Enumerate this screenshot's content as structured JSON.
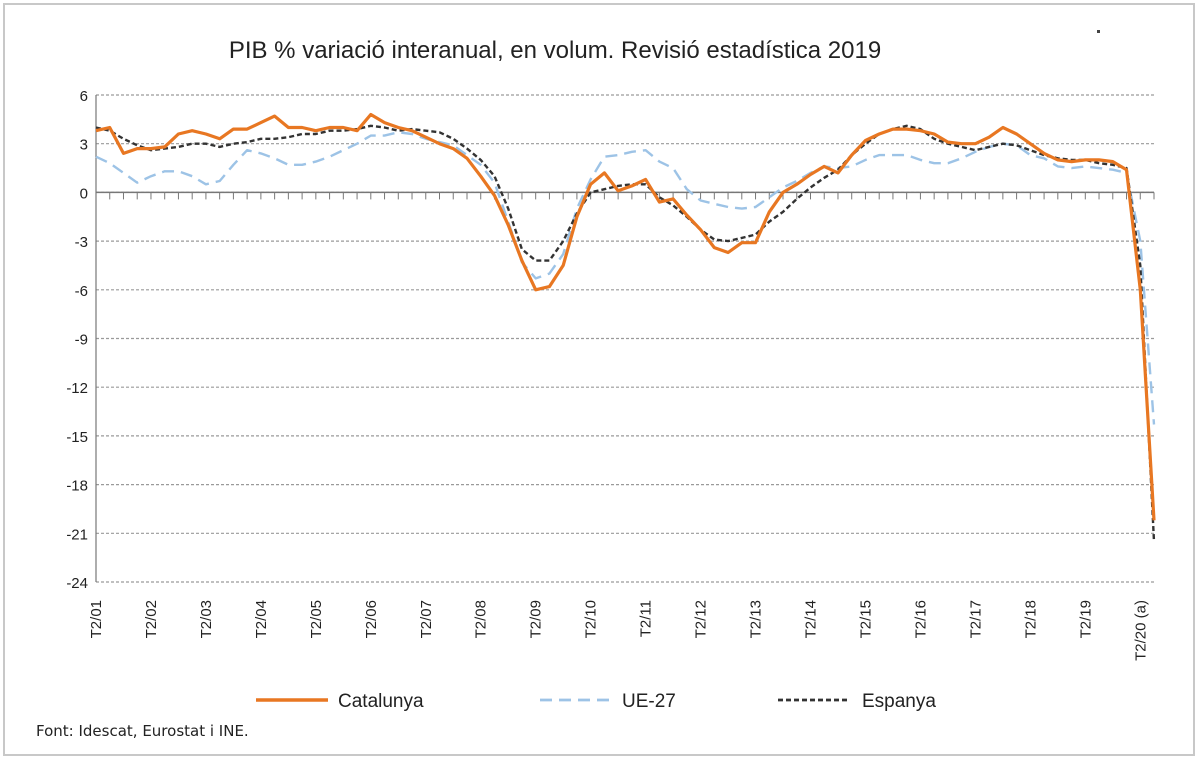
{
  "chart_data": {
    "type": "line",
    "title": "PIB % variació interanual, en volum. Revisió estadística 2019",
    "xlabel": "",
    "ylabel": "",
    "ylim": [
      -24,
      6
    ],
    "yticks": [
      6,
      3,
      0,
      -3,
      -6,
      -9,
      -12,
      -15,
      -18,
      -21,
      -24
    ],
    "x_tick_labels": [
      "T2/01",
      "T2/02",
      "T2/03",
      "T2/04",
      "T2/05",
      "T2/06",
      "T2/07",
      "T2/08",
      "T2/09",
      "T2/10",
      "T2/11",
      "T2/12",
      "T2/13",
      "T2/14",
      "T2/15",
      "T2/16",
      "T2/17",
      "T2/18",
      "T2/19",
      "T2/20 (a)"
    ],
    "x_tick_positions": [
      0,
      4,
      8,
      12,
      16,
      20,
      24,
      28,
      32,
      36,
      40,
      44,
      48,
      52,
      56,
      60,
      64,
      68,
      72,
      76
    ],
    "x_range": [
      0,
      76
    ],
    "grid": true,
    "legend_position": "bottom",
    "series": [
      {
        "name": "Catalunya",
        "color": "#e87722",
        "style": "solid",
        "points": [
          [
            0,
            3.8
          ],
          [
            1,
            4.0
          ],
          [
            2,
            2.4
          ],
          [
            3,
            2.7
          ],
          [
            4,
            2.7
          ],
          [
            5,
            2.8
          ],
          [
            6,
            3.6
          ],
          [
            7,
            3.8
          ],
          [
            8,
            3.6
          ],
          [
            9,
            3.3
          ],
          [
            10,
            3.9
          ],
          [
            11,
            3.9
          ],
          [
            12,
            4.3
          ],
          [
            13,
            4.7
          ],
          [
            14,
            4.0
          ],
          [
            15,
            4.0
          ],
          [
            16,
            3.8
          ],
          [
            17,
            4.0
          ],
          [
            18,
            4.0
          ],
          [
            19,
            3.8
          ],
          [
            20,
            4.8
          ],
          [
            21,
            4.3
          ],
          [
            22,
            4.0
          ],
          [
            23,
            3.8
          ],
          [
            24,
            3.4
          ],
          [
            25,
            3.0
          ],
          [
            26,
            2.7
          ],
          [
            27,
            2.1
          ],
          [
            28,
            1.0
          ],
          [
            29,
            -0.2
          ],
          [
            30,
            -2.0
          ],
          [
            31,
            -4.2
          ],
          [
            32,
            -6.0
          ],
          [
            33,
            -5.8
          ],
          [
            34,
            -4.5
          ],
          [
            35,
            -1.5
          ],
          [
            36,
            0.5
          ],
          [
            37,
            1.2
          ],
          [
            38,
            0.1
          ],
          [
            39,
            0.4
          ],
          [
            40,
            0.8
          ],
          [
            41,
            -0.6
          ],
          [
            42,
            -0.4
          ],
          [
            43,
            -1.4
          ],
          [
            44,
            -2.3
          ],
          [
            45,
            -3.4
          ],
          [
            46,
            -3.7
          ],
          [
            47,
            -3.1
          ],
          [
            48,
            -3.1
          ],
          [
            49,
            -1.2
          ],
          [
            50,
            0.0
          ],
          [
            51,
            0.5
          ],
          [
            52,
            1.1
          ],
          [
            53,
            1.6
          ],
          [
            54,
            1.2
          ],
          [
            55,
            2.3
          ],
          [
            56,
            3.2
          ],
          [
            57,
            3.6
          ],
          [
            58,
            3.9
          ],
          [
            59,
            3.9
          ],
          [
            60,
            3.8
          ],
          [
            61,
            3.6
          ],
          [
            62,
            3.1
          ],
          [
            63,
            3.0
          ],
          [
            64,
            3.0
          ],
          [
            65,
            3.4
          ],
          [
            66,
            4.0
          ],
          [
            67,
            3.6
          ],
          [
            68,
            3.0
          ],
          [
            69,
            2.4
          ],
          [
            70,
            2.0
          ],
          [
            71,
            1.9
          ],
          [
            72,
            2.0
          ],
          [
            73,
            2.0
          ],
          [
            74,
            1.9
          ],
          [
            75,
            1.4
          ],
          [
            76,
            -6.0
          ],
          [
            77,
            -20.2
          ]
        ]
      },
      {
        "name": "UE-27",
        "color": "#9dc3e6",
        "style": "dashed",
        "points": [
          [
            0,
            2.2
          ],
          [
            1,
            1.8
          ],
          [
            2,
            1.2
          ],
          [
            3,
            0.6
          ],
          [
            4,
            1.0
          ],
          [
            5,
            1.3
          ],
          [
            6,
            1.3
          ],
          [
            7,
            1.0
          ],
          [
            8,
            0.5
          ],
          [
            9,
            0.7
          ],
          [
            10,
            1.7
          ],
          [
            11,
            2.6
          ],
          [
            12,
            2.4
          ],
          [
            13,
            2.1
          ],
          [
            14,
            1.7
          ],
          [
            15,
            1.7
          ],
          [
            16,
            1.9
          ],
          [
            17,
            2.2
          ],
          [
            18,
            2.6
          ],
          [
            19,
            3.0
          ],
          [
            20,
            3.5
          ],
          [
            21,
            3.5
          ],
          [
            22,
            3.7
          ],
          [
            23,
            3.6
          ],
          [
            24,
            3.3
          ],
          [
            25,
            3.1
          ],
          [
            26,
            2.9
          ],
          [
            27,
            2.3
          ],
          [
            28,
            1.7
          ],
          [
            29,
            0.6
          ],
          [
            30,
            -1.8
          ],
          [
            31,
            -4.3
          ],
          [
            32,
            -5.3
          ],
          [
            33,
            -5.0
          ],
          [
            34,
            -3.8
          ],
          [
            35,
            -1.0
          ],
          [
            36,
            0.8
          ],
          [
            37,
            2.2
          ],
          [
            38,
            2.3
          ],
          [
            39,
            2.5
          ],
          [
            40,
            2.6
          ],
          [
            41,
            1.9
          ],
          [
            42,
            1.5
          ],
          [
            43,
            0.2
          ],
          [
            44,
            -0.5
          ],
          [
            45,
            -0.7
          ],
          [
            46,
            -0.9
          ],
          [
            47,
            -1.0
          ],
          [
            48,
            -0.9
          ],
          [
            49,
            -0.3
          ],
          [
            50,
            0.3
          ],
          [
            51,
            0.7
          ],
          [
            52,
            1.2
          ],
          [
            53,
            1.6
          ],
          [
            54,
            1.5
          ],
          [
            55,
            1.6
          ],
          [
            56,
            2.0
          ],
          [
            57,
            2.3
          ],
          [
            58,
            2.3
          ],
          [
            59,
            2.3
          ],
          [
            60,
            2.0
          ],
          [
            61,
            1.8
          ],
          [
            62,
            1.8
          ],
          [
            63,
            2.1
          ],
          [
            64,
            2.5
          ],
          [
            65,
            2.8
          ],
          [
            66,
            3.0
          ],
          [
            67,
            2.9
          ],
          [
            68,
            2.3
          ],
          [
            69,
            2.1
          ],
          [
            70,
            1.6
          ],
          [
            71,
            1.5
          ],
          [
            72,
            1.6
          ],
          [
            73,
            1.5
          ],
          [
            74,
            1.4
          ],
          [
            75,
            1.2
          ],
          [
            76,
            -3.0
          ],
          [
            77,
            -14.3
          ]
        ]
      },
      {
        "name": "Espanya",
        "color": "#333333",
        "style": "dotted",
        "points": [
          [
            0,
            4.0
          ],
          [
            1,
            3.8
          ],
          [
            2,
            3.3
          ],
          [
            3,
            2.9
          ],
          [
            4,
            2.6
          ],
          [
            5,
            2.7
          ],
          [
            6,
            2.8
          ],
          [
            7,
            3.0
          ],
          [
            8,
            3.0
          ],
          [
            9,
            2.8
          ],
          [
            10,
            3.0
          ],
          [
            11,
            3.1
          ],
          [
            12,
            3.3
          ],
          [
            13,
            3.3
          ],
          [
            14,
            3.4
          ],
          [
            15,
            3.6
          ],
          [
            16,
            3.6
          ],
          [
            17,
            3.8
          ],
          [
            18,
            3.8
          ],
          [
            19,
            3.9
          ],
          [
            20,
            4.1
          ],
          [
            21,
            4.0
          ],
          [
            22,
            3.8
          ],
          [
            23,
            3.9
          ],
          [
            24,
            3.8
          ],
          [
            25,
            3.7
          ],
          [
            26,
            3.3
          ],
          [
            27,
            2.7
          ],
          [
            28,
            2.0
          ],
          [
            29,
            1.0
          ],
          [
            30,
            -1.0
          ],
          [
            31,
            -3.5
          ],
          [
            32,
            -4.2
          ],
          [
            33,
            -4.2
          ],
          [
            34,
            -3.0
          ],
          [
            35,
            -1.3
          ],
          [
            36,
            0.0
          ],
          [
            37,
            0.2
          ],
          [
            38,
            0.4
          ],
          [
            39,
            0.5
          ],
          [
            40,
            0.5
          ],
          [
            41,
            -0.3
          ],
          [
            42,
            -0.8
          ],
          [
            43,
            -1.5
          ],
          [
            44,
            -2.3
          ],
          [
            45,
            -2.9
          ],
          [
            46,
            -3.0
          ],
          [
            47,
            -2.8
          ],
          [
            48,
            -2.6
          ],
          [
            49,
            -1.8
          ],
          [
            50,
            -1.2
          ],
          [
            51,
            -0.4
          ],
          [
            52,
            0.3
          ],
          [
            53,
            0.9
          ],
          [
            54,
            1.4
          ],
          [
            55,
            2.3
          ],
          [
            56,
            3.0
          ],
          [
            57,
            3.6
          ],
          [
            58,
            3.9
          ],
          [
            59,
            4.1
          ],
          [
            60,
            3.9
          ],
          [
            61,
            3.3
          ],
          [
            62,
            3.0
          ],
          [
            63,
            2.8
          ],
          [
            64,
            2.6
          ],
          [
            65,
            2.8
          ],
          [
            66,
            3.0
          ],
          [
            67,
            2.9
          ],
          [
            68,
            2.6
          ],
          [
            69,
            2.3
          ],
          [
            70,
            2.1
          ],
          [
            71,
            2.0
          ],
          [
            72,
            2.0
          ],
          [
            73,
            1.8
          ],
          [
            74,
            1.7
          ],
          [
            75,
            1.5
          ],
          [
            76,
            -4.5
          ],
          [
            77,
            -21.5
          ]
        ]
      }
    ]
  },
  "source": "Font: Idescat, Eurostat i INE."
}
